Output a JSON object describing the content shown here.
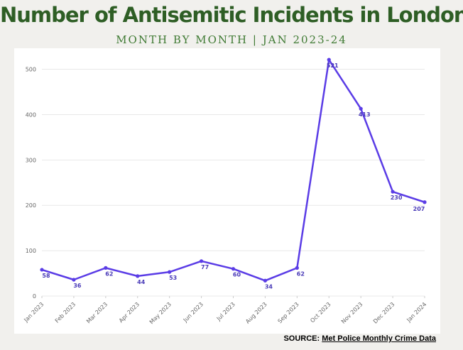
{
  "header": {
    "title": "Number of Antisemitic Incidents in London",
    "subtitle": "MONTH BY MONTH | JAN 2023-24"
  },
  "footer": {
    "source_label": "SOURCE:",
    "source_text": "Met Police Monthly Crime Data"
  },
  "colors": {
    "title": "#2e5e25",
    "line": "#5a3ce6",
    "grid": "#e8e8e8",
    "tick": "#666666"
  },
  "chart_data": {
    "type": "line",
    "title": "Number of Antisemitic Incidents in London",
    "subtitle": "MONTH BY MONTH | JAN 2023-24",
    "categories": [
      "Jan 2023",
      "Feb 2023",
      "Mar 2023",
      "Apr 2023",
      "May 2023",
      "Jun 2023",
      "Jul 2023",
      "Aug 2023",
      "Sep 2023",
      "Oct 2023",
      "Nov 2023",
      "Dec 2023",
      "Jan 2024"
    ],
    "values": [
      58,
      36,
      62,
      44,
      53,
      77,
      60,
      34,
      62,
      521,
      413,
      230,
      207
    ],
    "ylim": [
      0,
      540
    ],
    "yticks": [
      0,
      100,
      200,
      300,
      400,
      500
    ],
    "grid": true,
    "data_labels": true,
    "legend": "none"
  }
}
